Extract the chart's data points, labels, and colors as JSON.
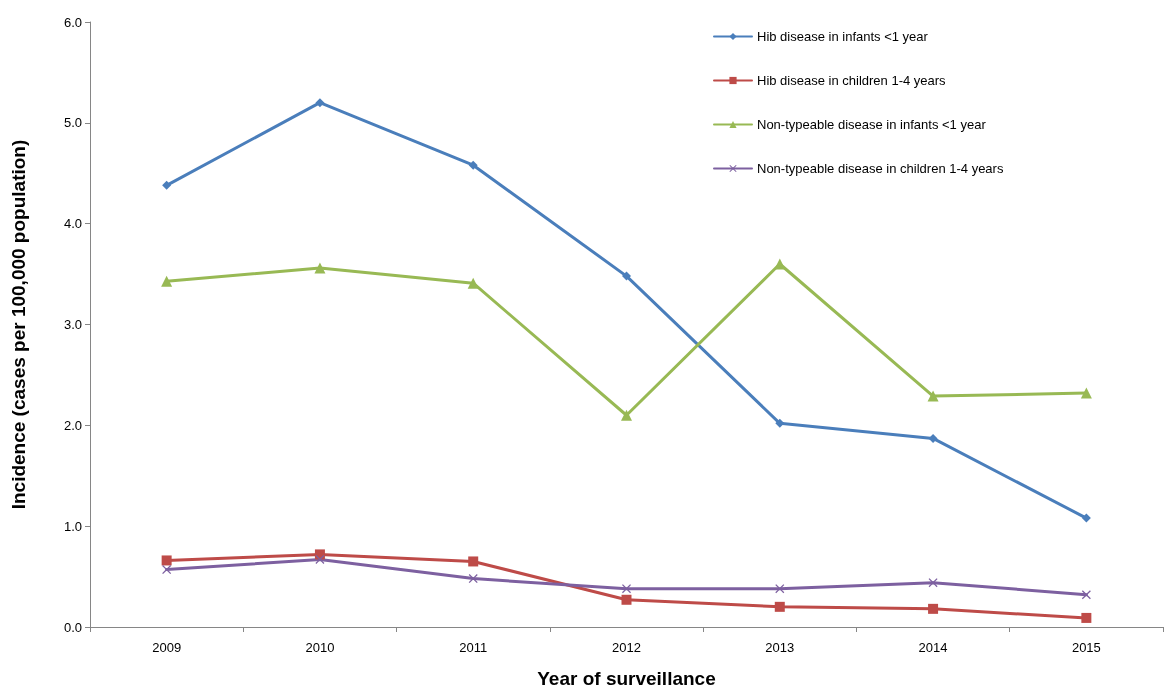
{
  "chart_data": {
    "type": "line",
    "xlabel": "Year of surveillance",
    "ylabel": "Incidence (cases per 100,000 population)",
    "categories": [
      "2009",
      "2010",
      "2011",
      "2012",
      "2013",
      "2014",
      "2015"
    ],
    "series": [
      {
        "name": "Hib disease in infants <1 year",
        "color": "#4a7ebb",
        "marker": "diamond",
        "values": [
          4.38,
          5.2,
          4.58,
          3.48,
          2.02,
          1.87,
          1.08
        ]
      },
      {
        "name": "Hib disease in children 1-4 years",
        "color": "#be4b48",
        "marker": "square",
        "values": [
          0.66,
          0.72,
          0.65,
          0.27,
          0.2,
          0.18,
          0.09
        ]
      },
      {
        "name": "Non-typeable disease in infants <1 year",
        "color": "#98b954",
        "marker": "triangle",
        "values": [
          3.43,
          3.56,
          3.41,
          2.1,
          3.6,
          2.29,
          2.32
        ]
      },
      {
        "name": "Non-typeable disease in children 1-4 years",
        "color": "#7d60a0",
        "marker": "cross",
        "values": [
          0.57,
          0.67,
          0.48,
          0.38,
          0.38,
          0.44,
          0.32
        ]
      }
    ],
    "ylim": [
      0,
      6
    ],
    "yticks": [
      {
        "value": 0,
        "label": "0.0"
      },
      {
        "value": 1,
        "label": "1.0"
      },
      {
        "value": 2,
        "label": "2.0"
      },
      {
        "value": 3,
        "label": "3.0"
      },
      {
        "value": 4,
        "label": "4.0"
      },
      {
        "value": 5,
        "label": "5.0"
      },
      {
        "value": 6,
        "label": "6.0"
      }
    ],
    "grid": false,
    "legend": "top right",
    "line_style": "solid"
  }
}
